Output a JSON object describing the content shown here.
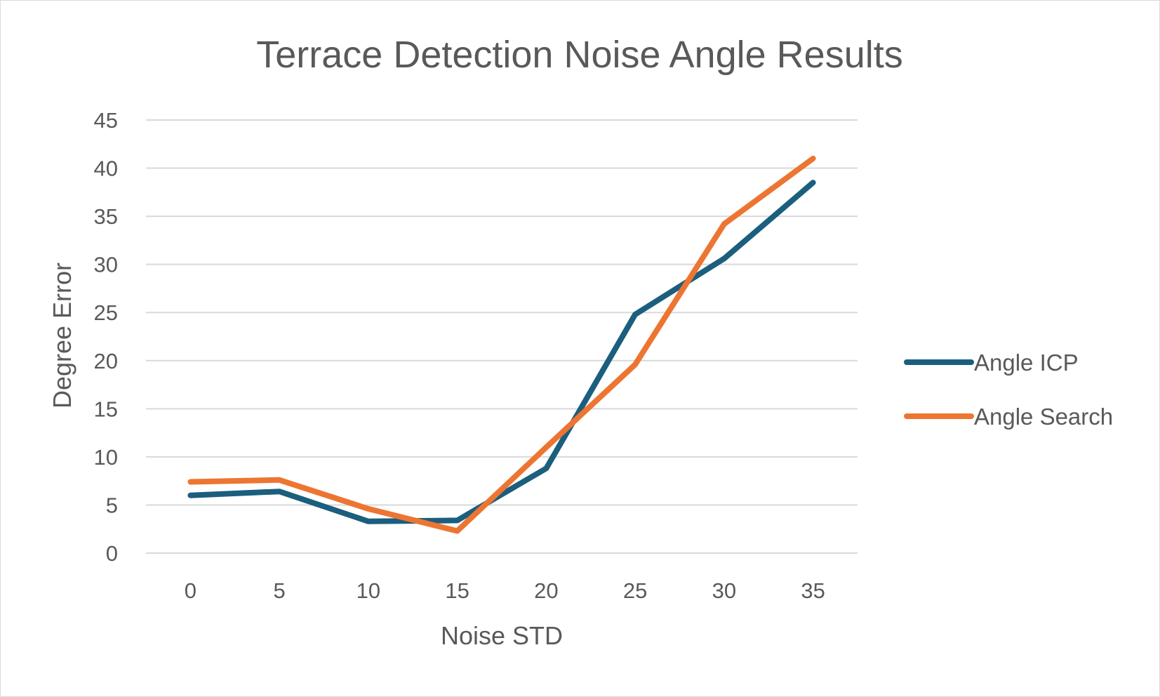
{
  "chart_data": {
    "type": "line",
    "title": "Terrace Detection Noise Angle Results",
    "xlabel": "Noise STD",
    "ylabel": "Degree Error",
    "categories": [
      "0",
      "5",
      "10",
      "15",
      "20",
      "25",
      "30",
      "35"
    ],
    "ylim": [
      0,
      45
    ],
    "yticks": [
      "0",
      "5",
      "10",
      "15",
      "20",
      "25",
      "30",
      "35",
      "40",
      "45"
    ],
    "grid": true,
    "legend_position": "right",
    "series": [
      {
        "name": "Angle ICP",
        "color": "#1b5e7e",
        "values": [
          6.0,
          6.4,
          3.3,
          3.4,
          8.8,
          24.8,
          30.6,
          38.5
        ]
      },
      {
        "name": "Angle Search",
        "color": "#ed7532",
        "values": [
          7.4,
          7.6,
          4.6,
          2.3,
          11.0,
          19.6,
          34.2,
          41.0
        ]
      }
    ]
  }
}
